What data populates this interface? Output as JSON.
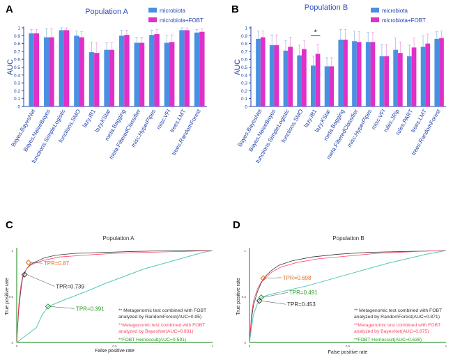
{
  "colors": {
    "microbiota": "#4a90e2",
    "microbiota_fobt": "#e030c8",
    "title": "#2f4fbf",
    "axis": "#2244aa",
    "roc_axis": "#3a9a3a",
    "rf_curve": "#333333",
    "bn_curve": "#ff4466",
    "fobt_curve": "#4fc8b8",
    "tpr_orange": "#e07020",
    "tpr_green": "#2a9a2a"
  },
  "chart_data": [
    {
      "panel": "A",
      "type": "bar",
      "title": "Population A",
      "ylabel": "AUC",
      "ylim": [
        0,
        1.0
      ],
      "yticks": [
        "0",
        "0.1",
        "0.2",
        "0.3",
        "0.4",
        "0.5",
        "0.6",
        "0.7",
        "0.8",
        "0.9",
        "1"
      ],
      "categories": [
        "Bayes.BayesNet",
        "Bayes.NaiveBayes",
        "functions.SimpleLogistic",
        "functions.SMO",
        "lazy.IB1",
        "lazy.KStar",
        "meta.Bagging",
        "meta.FilteredClassifier",
        "misc.HyperPipes",
        "misc.VFI",
        "trees.LMT",
        "trees.RandomForest"
      ],
      "series": [
        {
          "name": "microbiota",
          "values": [
            0.93,
            0.88,
            0.97,
            0.9,
            0.69,
            0.72,
            0.9,
            0.81,
            0.91,
            0.81,
            0.97,
            0.94
          ],
          "errors": [
            0.05,
            0.11,
            0.03,
            0.06,
            0.13,
            0.09,
            0.07,
            0.07,
            0.06,
            0.09,
            0.03,
            0.04
          ]
        },
        {
          "name": "microbiota+FOBT",
          "values": [
            0.93,
            0.88,
            0.97,
            0.88,
            0.68,
            0.72,
            0.91,
            0.81,
            0.92,
            0.82,
            0.97,
            0.95
          ],
          "errors": [
            0.05,
            0.11,
            0.03,
            0.07,
            0.13,
            0.09,
            0.06,
            0.07,
            0.06,
            0.09,
            0.03,
            0.04
          ]
        }
      ],
      "legend": "top-right"
    },
    {
      "panel": "B",
      "type": "bar",
      "title": "Population B",
      "ylabel": "AUC",
      "ylim": [
        0,
        1.0
      ],
      "yticks": [
        "0",
        "0.1",
        "0.2",
        "0.3",
        "0.4",
        "0.5",
        "0.6",
        "0.7",
        "0.8",
        "0.9",
        "1"
      ],
      "categories": [
        "Bayes.BayesNet",
        "Bayes.NaiveBayes",
        "functions.SimpleLogistic",
        "functions.SMO",
        "lazy.IB1",
        "lazy.KStar",
        "meta.Bagging",
        "meta.FilteredClassifier",
        "misc.HyperPipes",
        "misc.VFI",
        "rules.JRip",
        "rules.PART",
        "trees.LMT",
        "trees.RandomForest"
      ],
      "series": [
        {
          "name": "microbiota",
          "values": [
            0.86,
            0.78,
            0.71,
            0.65,
            0.52,
            0.51,
            0.85,
            0.83,
            0.82,
            0.64,
            0.72,
            0.64,
            0.76,
            0.86
          ],
          "errors": [
            0.1,
            0.13,
            0.13,
            0.13,
            0.12,
            0.11,
            0.13,
            0.13,
            0.12,
            0.15,
            0.15,
            0.14,
            0.14,
            0.09
          ]
        },
        {
          "name": "microbiota+FOBT",
          "values": [
            0.88,
            0.78,
            0.76,
            0.73,
            0.67,
            0.51,
            0.85,
            0.82,
            0.82,
            0.64,
            0.68,
            0.75,
            0.8,
            0.87
          ],
          "errors": [
            0.08,
            0.13,
            0.12,
            0.11,
            0.12,
            0.11,
            0.13,
            0.13,
            0.12,
            0.15,
            0.14,
            0.12,
            0.12,
            0.09
          ]
        }
      ],
      "significance": {
        "category": "lazy.IB1",
        "label": "*"
      },
      "legend": "top-right"
    },
    {
      "panel": "C",
      "type": "line",
      "title": "Population A",
      "xlabel": "False positive rate",
      "ylabel": "True positive rate",
      "xlim": [
        0,
        1
      ],
      "ylim": [
        0,
        1
      ],
      "xticks": [
        "0",
        "0.5",
        "1"
      ],
      "yticks": [
        "0",
        "0.5",
        "1"
      ],
      "series": [
        {
          "name": "RandomForest",
          "x": [
            0,
            0.01,
            0.02,
            0.03,
            0.05,
            0.07,
            0.1,
            0.14,
            0.2,
            0.3,
            0.45,
            0.6,
            0.8,
            1.0
          ],
          "y": [
            0,
            0.35,
            0.55,
            0.7,
            0.8,
            0.85,
            0.88,
            0.92,
            0.95,
            0.97,
            0.98,
            0.99,
            1.0,
            1.0
          ]
        },
        {
          "name": "BayesNet",
          "x": [
            0,
            0.01,
            0.02,
            0.03,
            0.05,
            0.07,
            0.1,
            0.15,
            0.22,
            0.35,
            0.5,
            0.65,
            0.85,
            1.0
          ],
          "y": [
            0,
            0.4,
            0.6,
            0.72,
            0.8,
            0.84,
            0.87,
            0.9,
            0.93,
            0.95,
            0.97,
            0.98,
            0.99,
            1.0
          ]
        },
        {
          "name": "FOBT Hemoccult",
          "x": [
            0,
            0.05,
            0.1,
            0.13,
            0.16,
            0.25,
            0.35,
            0.45,
            0.55,
            0.65,
            0.75,
            0.85,
            0.95,
            1.0
          ],
          "y": [
            0,
            0.08,
            0.16,
            0.3,
            0.39,
            0.47,
            0.55,
            0.64,
            0.72,
            0.8,
            0.86,
            0.92,
            0.98,
            1.0
          ]
        }
      ],
      "points": [
        {
          "label": "TPR=0.87",
          "x": 0.06,
          "y": 0.87
        },
        {
          "label": "TPR=0.739",
          "x": 0.04,
          "y": 0.739
        },
        {
          "label": "TPR=0.391",
          "x": 0.16,
          "y": 0.391
        }
      ],
      "annotations": [
        "** Metagenomic test combined with FOBT analyzed by RandomForest(AUC=0.95)",
        "**Metagenomic test combined with FOBT analyzed by BayesNet(AUC=0.931)",
        "**FOBT Hemoccult(AUC=0.591)"
      ]
    },
    {
      "panel": "D",
      "type": "line",
      "title": "Population B",
      "xlabel": "False positive rate",
      "ylabel": "True positive rate",
      "xlim": [
        0,
        1
      ],
      "ylim": [
        0,
        1
      ],
      "xticks": [
        "0",
        "0.5",
        "1"
      ],
      "yticks": [
        "0",
        "0.5",
        "1"
      ],
      "series": [
        {
          "name": "RandomForest",
          "x": [
            0,
            0.01,
            0.02,
            0.04,
            0.06,
            0.08,
            0.11,
            0.15,
            0.22,
            0.32,
            0.45,
            0.6,
            0.8,
            1.0
          ],
          "y": [
            0,
            0.25,
            0.4,
            0.55,
            0.65,
            0.72,
            0.78,
            0.84,
            0.89,
            0.93,
            0.96,
            0.98,
            0.99,
            1.0
          ]
        },
        {
          "name": "BayesNet",
          "x": [
            0,
            0.01,
            0.02,
            0.04,
            0.06,
            0.08,
            0.11,
            0.16,
            0.24,
            0.35,
            0.5,
            0.65,
            0.85,
            1.0
          ],
          "y": [
            0,
            0.3,
            0.45,
            0.58,
            0.66,
            0.7,
            0.76,
            0.82,
            0.87,
            0.91,
            0.94,
            0.97,
            0.99,
            1.0
          ]
        },
        {
          "name": "FOBT Hemoccult",
          "x": [
            0,
            0.02,
            0.04,
            0.06,
            0.1,
            0.2,
            0.3,
            0.4,
            0.5,
            0.6,
            0.7,
            0.8,
            0.9,
            1.0
          ],
          "y": [
            0,
            0.3,
            0.42,
            0.49,
            0.52,
            0.57,
            0.62,
            0.68,
            0.74,
            0.8,
            0.86,
            0.91,
            0.96,
            1.0
          ]
        }
      ],
      "points": [
        {
          "label": "TPR=0.698",
          "x": 0.07,
          "y": 0.698
        },
        {
          "label": "TPR=0.491",
          "x": 0.06,
          "y": 0.491
        },
        {
          "label": "TPR=0.453",
          "x": 0.05,
          "y": 0.453
        }
      ],
      "annotations": [
        "** Metagenomic test combined with FOBT analyzed by RandomForest(AUC=0.871)",
        "**Metagenomic test combined with FOBT analyzed by BayesNet(AUC=0.875)",
        "**FOBT Hemoccult(AUC=0.636)"
      ]
    }
  ]
}
